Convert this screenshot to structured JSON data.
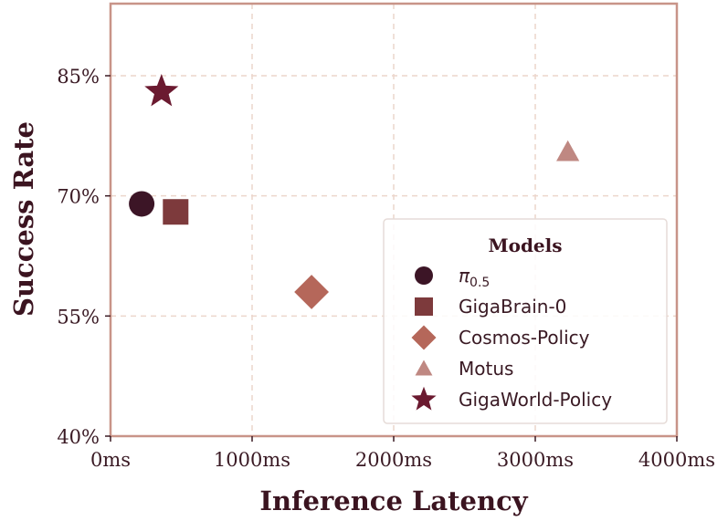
{
  "chart_data": {
    "type": "scatter",
    "xlabel": "Inference Latency",
    "ylabel": "Success Rate",
    "xlim": [
      0,
      4000
    ],
    "ylim": [
      40,
      94
    ],
    "x_ticks": [
      0,
      1000,
      2000,
      3000,
      4000
    ],
    "x_tick_labels": [
      "0ms",
      "1000ms",
      "2000ms",
      "3000ms",
      "4000ms"
    ],
    "y_ticks": [
      40,
      55,
      70,
      85
    ],
    "y_tick_labels": [
      "40%",
      "55%",
      "70%",
      "85%"
    ],
    "grid": true,
    "legend": {
      "title": "Models",
      "placement": "lower-right"
    },
    "series": [
      {
        "name": "π0.5",
        "label_main": "π",
        "label_sub": "0.5",
        "marker": "circle",
        "color": "#3c1526",
        "x": 220,
        "y": 69
      },
      {
        "name": "GigaBrain-0",
        "marker": "square",
        "color": "#7d3a3c",
        "x": 460,
        "y": 68
      },
      {
        "name": "Cosmos-Policy",
        "marker": "diamond",
        "color": "#b5675a",
        "x": 1420,
        "y": 58
      },
      {
        "name": "Motus",
        "marker": "triangle",
        "color": "#bf8882",
        "x": 3230,
        "y": 75.5
      },
      {
        "name": "GigaWorld-Policy",
        "marker": "star",
        "color": "#6b1a30",
        "x": 360,
        "y": 83
      }
    ],
    "colors": {
      "frame": "#c89488",
      "grid": "#ecd6cc",
      "tick": "#3a1a24"
    }
  }
}
